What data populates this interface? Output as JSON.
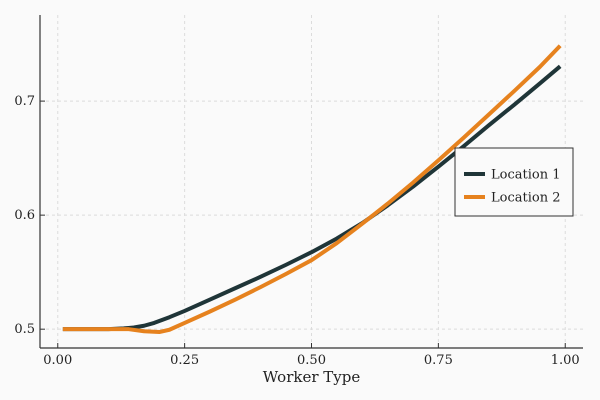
{
  "chart_data": {
    "type": "line",
    "title": "",
    "xlabel": "Worker Type",
    "ylabel": "",
    "xlim": [
      -0.035,
      1.035
    ],
    "ylim": [
      0.4835,
      0.7755
    ],
    "xticks": [
      0.0,
      0.25,
      0.5,
      0.75,
      1.0
    ],
    "xtick_labels": [
      "0.00",
      "0.25",
      "0.50",
      "0.75",
      "1.00"
    ],
    "yticks": [
      0.5,
      0.6,
      0.7
    ],
    "ytick_labels": [
      "0.5",
      "0.6",
      "0.7"
    ],
    "grid": true,
    "legend_position": "right",
    "series": [
      {
        "name": "Location 1",
        "color": "#1f3538",
        "points": [
          [
            0.01,
            0.5
          ],
          [
            0.05,
            0.5
          ],
          [
            0.1,
            0.5
          ],
          [
            0.13,
            0.5007
          ],
          [
            0.15,
            0.5015
          ],
          [
            0.17,
            0.503
          ],
          [
            0.19,
            0.5055
          ],
          [
            0.22,
            0.5105
          ],
          [
            0.25,
            0.516
          ],
          [
            0.3,
            0.526
          ],
          [
            0.35,
            0.536
          ],
          [
            0.4,
            0.546
          ],
          [
            0.45,
            0.5565
          ],
          [
            0.5,
            0.5675
          ],
          [
            0.55,
            0.5795
          ],
          [
            0.6,
            0.593
          ],
          [
            0.65,
            0.6085
          ],
          [
            0.7,
            0.625
          ],
          [
            0.75,
            0.6425
          ],
          [
            0.8,
            0.6605
          ],
          [
            0.85,
            0.679
          ],
          [
            0.9,
            0.697
          ],
          [
            0.95,
            0.7155
          ],
          [
            0.99,
            0.7305
          ]
        ]
      },
      {
        "name": "Location 2",
        "color": "#e6821e",
        "points": [
          [
            0.01,
            0.5
          ],
          [
            0.05,
            0.5
          ],
          [
            0.1,
            0.5
          ],
          [
            0.14,
            0.5
          ],
          [
            0.17,
            0.4982
          ],
          [
            0.2,
            0.4975
          ],
          [
            0.22,
            0.4995
          ],
          [
            0.25,
            0.5055
          ],
          [
            0.3,
            0.5155
          ],
          [
            0.35,
            0.526
          ],
          [
            0.4,
            0.537
          ],
          [
            0.45,
            0.5485
          ],
          [
            0.5,
            0.5605
          ],
          [
            0.55,
            0.5755
          ],
          [
            0.6,
            0.5925
          ],
          [
            0.65,
            0.61
          ],
          [
            0.7,
            0.6285
          ],
          [
            0.75,
            0.648
          ],
          [
            0.8,
            0.668
          ],
          [
            0.85,
            0.6885
          ],
          [
            0.9,
            0.709
          ],
          [
            0.95,
            0.73
          ],
          [
            0.99,
            0.7485
          ]
        ]
      }
    ]
  }
}
